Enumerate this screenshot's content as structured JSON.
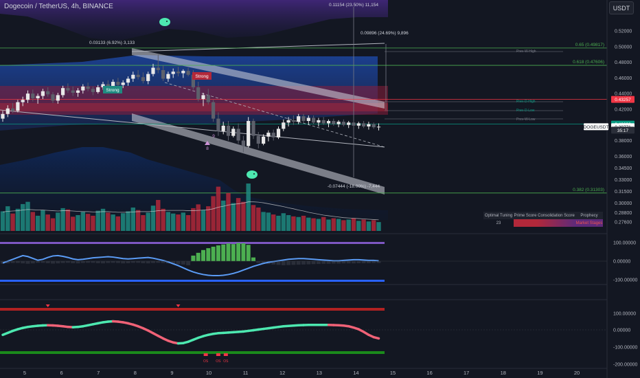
{
  "header": {
    "symbol_line": "Dogecoin / TetherUS, 4h, BINANCE",
    "currency_button": "USDT"
  },
  "price_axis": {
    "ticks": [
      "0.52000",
      "0.50000",
      "0.48000",
      "0.46000",
      "0.44000",
      "0.42000",
      "0.40000",
      "0.38000",
      "0.36000",
      "0.34500",
      "0.33000",
      "0.31500",
      "0.30000",
      "0.28800",
      "0.27600"
    ],
    "badges": [
      {
        "text": "0.43257",
        "price": 0.43257,
        "color": "#f23645"
      },
      {
        "text": "0.40096",
        "price": 0.40096,
        "color": "#089981"
      },
      {
        "text": "0.39771",
        "price": 0.39771,
        "color": "#ffffff"
      },
      {
        "text": "DOGEUSDT",
        "price": 0.39771,
        "color": "#ffffff"
      },
      {
        "text": "35:17",
        "price": 0.3933,
        "color": "#2a2e39"
      }
    ]
  },
  "time_axis": {
    "ticks": [
      "5",
      "6",
      "7",
      "8",
      "9",
      "10",
      "11",
      "12",
      "13",
      "14",
      "15",
      "16",
      "17",
      "18",
      "19",
      "20"
    ]
  },
  "annotations": {
    "top_measure": "0.11154 (23.50%) 11,154",
    "upper_measure": "0.09896 (24.69%) 9,896",
    "left_measure": "0.03133 (6.92%) 3,133",
    "lower_measure": "-0.07444 (-18.00%) -7,444",
    "fib_065": "0.65 (0.49817)",
    "fib_0618": "0.618 (0.47606)",
    "fib_0382": "0.382 (0.31303)",
    "prev_w_high": "Prev-W-High",
    "prev_d_high": "Prev-D-High",
    "prev_d_low": "Prev-D-Low",
    "prev_w_low": "Prev-W-Low",
    "strong_1": "Strong",
    "strong_2": "Strong",
    "mark_8": "8",
    "mark_9": "9"
  },
  "osc1_axis": [
    "100.00000",
    "0.00000",
    "-100.00000"
  ],
  "osc2_axis": [
    "100.00000",
    "0.00000",
    "-100.00000",
    "-200.00000"
  ],
  "osc2_labels": [
    "OS",
    "OS",
    "OS"
  ],
  "table": {
    "headers": [
      "Optimal Tuning",
      "Prime Score",
      "Consolidation Score",
      "Prophecy"
    ],
    "values": [
      "23",
      "",
      "",
      "Market Stages"
    ]
  },
  "colors": {
    "up": "#26a69a",
    "down": "#ef5350",
    "background": "#131722",
    "purple": "#7e57c2",
    "blue": "#2962ff"
  },
  "chart_data": {
    "type": "candlestick",
    "symbol": "DOGEUSDT",
    "interval": "4h",
    "exchange": "BINANCE",
    "y_range": [
      0.266,
      0.535
    ],
    "x_ticks": [
      "5",
      "6",
      "7",
      "8",
      "9",
      "10",
      "11",
      "12",
      "13",
      "14",
      "15",
      "16",
      "17",
      "18",
      "19",
      "20"
    ],
    "candles": [
      [
        0.408,
        0.418,
        0.404,
        0.414
      ],
      [
        0.414,
        0.425,
        0.41,
        0.421
      ],
      [
        0.421,
        0.428,
        0.415,
        0.418
      ],
      [
        0.418,
        0.432,
        0.416,
        0.429
      ],
      [
        0.429,
        0.436,
        0.424,
        0.432
      ],
      [
        0.432,
        0.444,
        0.428,
        0.44
      ],
      [
        0.44,
        0.445,
        0.43,
        0.434
      ],
      [
        0.434,
        0.44,
        0.427,
        0.437
      ],
      [
        0.437,
        0.446,
        0.433,
        0.443
      ],
      [
        0.443,
        0.448,
        0.436,
        0.439
      ],
      [
        0.439,
        0.442,
        0.428,
        0.431
      ],
      [
        0.431,
        0.441,
        0.427,
        0.438
      ],
      [
        0.438,
        0.45,
        0.435,
        0.447
      ],
      [
        0.447,
        0.453,
        0.441,
        0.444
      ],
      [
        0.444,
        0.449,
        0.437,
        0.441
      ],
      [
        0.441,
        0.447,
        0.436,
        0.444
      ],
      [
        0.444,
        0.452,
        0.44,
        0.449
      ],
      [
        0.449,
        0.454,
        0.443,
        0.446
      ],
      [
        0.446,
        0.449,
        0.438,
        0.442
      ],
      [
        0.442,
        0.451,
        0.44,
        0.448
      ],
      [
        0.448,
        0.455,
        0.445,
        0.452
      ],
      [
        0.452,
        0.457,
        0.446,
        0.449
      ],
      [
        0.449,
        0.458,
        0.446,
        0.455
      ],
      [
        0.455,
        0.46,
        0.448,
        0.451
      ],
      [
        0.451,
        0.457,
        0.447,
        0.454
      ],
      [
        0.454,
        0.462,
        0.45,
        0.459
      ],
      [
        0.459,
        0.468,
        0.455,
        0.464
      ],
      [
        0.464,
        0.47,
        0.458,
        0.461
      ],
      [
        0.461,
        0.467,
        0.453,
        0.456
      ],
      [
        0.456,
        0.468,
        0.452,
        0.465
      ],
      [
        0.465,
        0.478,
        0.462,
        0.473
      ],
      [
        0.473,
        0.49,
        0.466,
        0.47
      ],
      [
        0.47,
        0.476,
        0.456,
        0.459
      ],
      [
        0.459,
        0.468,
        0.455,
        0.465
      ],
      [
        0.465,
        0.472,
        0.46,
        0.468
      ],
      [
        0.468,
        0.474,
        0.462,
        0.466
      ],
      [
        0.466,
        0.471,
        0.46,
        0.469
      ],
      [
        0.469,
        0.473,
        0.462,
        0.464
      ],
      [
        0.464,
        0.47,
        0.445,
        0.448
      ],
      [
        0.448,
        0.455,
        0.43,
        0.433
      ],
      [
        0.433,
        0.441,
        0.424,
        0.438
      ],
      [
        0.438,
        0.446,
        0.426,
        0.429
      ],
      [
        0.429,
        0.432,
        0.404,
        0.408
      ],
      [
        0.408,
        0.416,
        0.386,
        0.392
      ],
      [
        0.392,
        0.404,
        0.388,
        0.399
      ],
      [
        0.399,
        0.405,
        0.38,
        0.386
      ],
      [
        0.386,
        0.398,
        0.384,
        0.395
      ],
      [
        0.395,
        0.402,
        0.376,
        0.38
      ],
      [
        0.38,
        0.386,
        0.365,
        0.373
      ],
      [
        0.373,
        0.41,
        0.371,
        0.405
      ],
      [
        0.405,
        0.408,
        0.382,
        0.386
      ],
      [
        0.386,
        0.391,
        0.37,
        0.376
      ],
      [
        0.376,
        0.388,
        0.374,
        0.385
      ],
      [
        0.385,
        0.393,
        0.379,
        0.39
      ],
      [
        0.39,
        0.394,
        0.38,
        0.384
      ],
      [
        0.384,
        0.398,
        0.382,
        0.395
      ],
      [
        0.395,
        0.407,
        0.392,
        0.403
      ],
      [
        0.403,
        0.41,
        0.398,
        0.406
      ],
      [
        0.406,
        0.412,
        0.4,
        0.404
      ],
      [
        0.404,
        0.414,
        0.401,
        0.411
      ],
      [
        0.411,
        0.414,
        0.402,
        0.405
      ],
      [
        0.405,
        0.412,
        0.4,
        0.409
      ],
      [
        0.409,
        0.412,
        0.401,
        0.403
      ],
      [
        0.403,
        0.409,
        0.398,
        0.406
      ],
      [
        0.406,
        0.41,
        0.4,
        0.402
      ],
      [
        0.402,
        0.407,
        0.397,
        0.405
      ],
      [
        0.405,
        0.408,
        0.399,
        0.401
      ],
      [
        0.401,
        0.406,
        0.397,
        0.404
      ],
      [
        0.404,
        0.407,
        0.398,
        0.4
      ],
      [
        0.4,
        0.405,
        0.396,
        0.403
      ],
      [
        0.403,
        0.406,
        0.397,
        0.399
      ],
      [
        0.399,
        0.404,
        0.395,
        0.402
      ],
      [
        0.402,
        0.405,
        0.396,
        0.398
      ],
      [
        0.398,
        0.404,
        0.394,
        0.401
      ],
      [
        0.401,
        0.403,
        0.395,
        0.397
      ],
      [
        0.397,
        0.402,
        0.393,
        0.3977
      ]
    ],
    "volume": [
      62,
      78,
      55,
      70,
      85,
      92,
      60,
      48,
      66,
      52,
      40,
      58,
      72,
      68,
      45,
      50,
      60,
      54,
      48,
      64,
      70,
      58,
      52,
      46,
      56,
      62,
      74,
      66,
      50,
      58,
      80,
      98,
      70,
      60,
      55,
      52,
      58,
      50,
      72,
      84,
      66,
      78,
      110,
      140,
      96,
      120,
      88,
      104,
      92,
      150,
      82,
      74,
      60,
      58,
      52,
      48,
      56,
      50,
      46,
      44,
      48,
      42,
      40,
      38,
      44,
      36,
      40,
      38,
      34,
      36,
      40,
      32,
      36,
      30,
      34,
      28
    ],
    "volume_ma": [
      60,
      62,
      63,
      64,
      66,
      68,
      67,
      66,
      66,
      65,
      64,
      63,
      64,
      64,
      63,
      62,
      61,
      61,
      60,
      60,
      61,
      61,
      60,
      59,
      59,
      59,
      60,
      61,
      61,
      61,
      62,
      64,
      65,
      65,
      65,
      65,
      65,
      64,
      64,
      65,
      66,
      67,
      70,
      75,
      78,
      82,
      84,
      86,
      88,
      92,
      92,
      91,
      89,
      86,
      83,
      80,
      77,
      73,
      70,
      66,
      63,
      59,
      56,
      53,
      50,
      48,
      46,
      44,
      42,
      41,
      40,
      39,
      38,
      37,
      36,
      35
    ],
    "osc1_histogram": [
      -14,
      -12,
      -10,
      -10,
      -12,
      -14,
      -12,
      -9,
      -9,
      -11,
      -13,
      -12,
      -10,
      -9,
      -11,
      -12,
      -10,
      -9,
      -9,
      -11,
      -12,
      -10,
      -9,
      -10,
      -12,
      -11,
      -9,
      -9,
      -11,
      -12,
      -10,
      -9,
      -10,
      -12,
      -14,
      -16,
      -18,
      -22,
      30,
      45,
      60,
      70,
      78,
      85,
      90,
      95,
      92,
      98,
      96,
      88,
      20,
      -10,
      -14,
      -16,
      -18,
      -20,
      -22,
      -21,
      -20,
      -19,
      -18,
      -17,
      -16,
      -15,
      -14,
      -14,
      -13,
      -13,
      -12,
      -12,
      -12,
      -11,
      -11,
      -11,
      -10,
      -10
    ],
    "osc1_wave": [
      -10,
      0,
      10,
      20,
      30,
      25,
      15,
      5,
      10,
      20,
      28,
      30,
      26,
      20,
      12,
      8,
      10,
      14,
      18,
      20,
      22,
      24,
      22,
      18,
      14,
      12,
      14,
      16,
      18,
      20,
      16,
      10,
      4,
      -4,
      -14,
      -24,
      -36,
      -48,
      -58,
      -66,
      -72,
      -76,
      -78,
      -78,
      -76,
      -72,
      -66,
      -58,
      -48,
      -38,
      -28,
      -20,
      -12,
      -6,
      -2,
      2,
      6,
      10,
      12,
      14,
      14,
      12,
      10,
      8,
      6,
      4,
      2,
      2,
      4,
      6,
      8,
      8,
      6,
      4,
      4,
      2
    ],
    "osc2_wave": [
      -30,
      -18,
      -6,
      4,
      12,
      18,
      22,
      25,
      27,
      28,
      27,
      25,
      22,
      18,
      16,
      18,
      22,
      28,
      34,
      40,
      46,
      50,
      52,
      50,
      46,
      40,
      32,
      22,
      10,
      -4,
      -20,
      -36,
      -52,
      -66,
      -76,
      -82,
      -80,
      -72,
      -60,
      -48,
      -38,
      -30,
      -24,
      -20,
      -18,
      -16,
      -14,
      -12,
      -10,
      -6,
      -2,
      2,
      6,
      10,
      14,
      18,
      22,
      24,
      26,
      28,
      29,
      30,
      30,
      30,
      30,
      30,
      29,
      28,
      26,
      22,
      14,
      4,
      -12,
      -30,
      -44,
      -52
    ],
    "osc2_signal_markers": [
      9,
      35
    ]
  }
}
